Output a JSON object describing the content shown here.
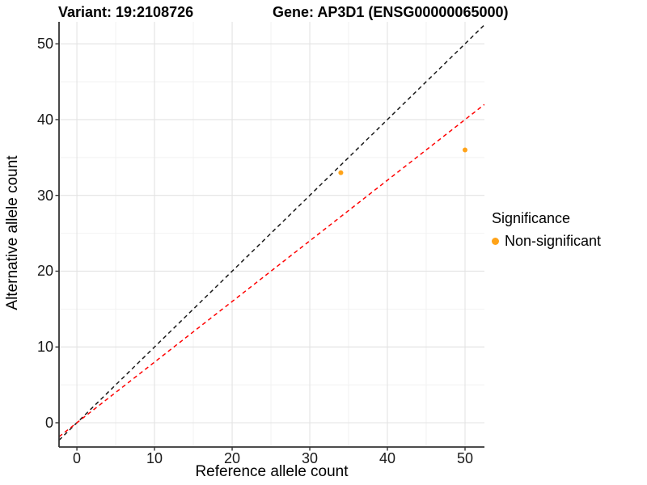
{
  "titles": {
    "variant": "Variant: 19:2108726",
    "gene": "Gene: AP3D1 (ENSG00000065000)"
  },
  "colors": {
    "point": "#FFA319",
    "identity_line": "#1A1A1A",
    "ratio_line": "#FF0000",
    "grid_major": "#E3E3E3",
    "grid_minor": "#F2F2F2",
    "axis_line": "#333333",
    "text": "#1A1A1A"
  },
  "chart_data": {
    "type": "scatter",
    "title_left": "Variant: 19:2108726",
    "title_right": "Gene: AP3D1 (ENSG00000065000)",
    "xlabel": "Reference allele count",
    "ylabel": "Alternative allele count",
    "xlim": [
      -2.3,
      52.5
    ],
    "ylim": [
      -3.2,
      52.9
    ],
    "x_ticks": [
      0,
      10,
      20,
      30,
      40,
      50
    ],
    "y_ticks": [
      0,
      10,
      20,
      30,
      40,
      50
    ],
    "x_minor": [
      5,
      15,
      25,
      35,
      45
    ],
    "y_minor": [
      5,
      15,
      25,
      35,
      45
    ],
    "grid": "on",
    "points": [
      {
        "x": 34,
        "y": 33,
        "series": "Non-significant"
      },
      {
        "x": 50,
        "y": 36,
        "series": "Non-significant"
      }
    ],
    "lines": [
      {
        "name": "identity-line",
        "slope": 1,
        "intercept": 0,
        "color": "#1A1A1A",
        "style": "dashed"
      },
      {
        "name": "ratio-line",
        "slope": 0.8,
        "intercept": 0,
        "color": "#FF0000",
        "style": "dashed"
      }
    ],
    "legend": {
      "position": "right",
      "title": "Significance",
      "items": [
        {
          "label": "Non-significant",
          "color": "#FFA319"
        }
      ]
    }
  }
}
